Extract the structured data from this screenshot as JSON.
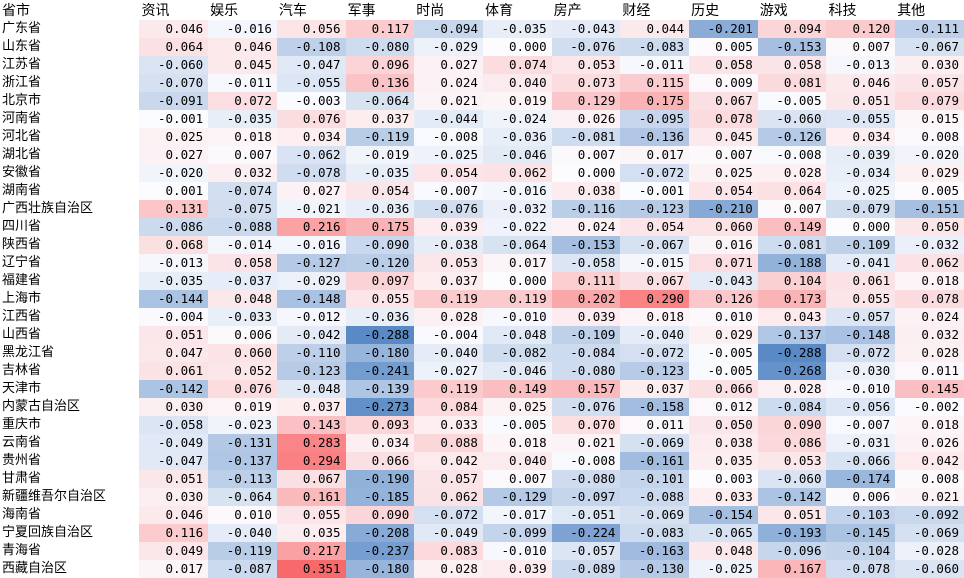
{
  "chart_data": {
    "type": "heatmap",
    "corner_label": "省市",
    "columns": [
      "资讯",
      "娱乐",
      "汽车",
      "军事",
      "时尚",
      "体育",
      "房产",
      "财经",
      "历史",
      "游戏",
      "科技",
      "其他"
    ],
    "rows": [
      {
        "name": "广东省",
        "values": [
          0.046,
          -0.016,
          0.056,
          0.117,
          -0.094,
          -0.035,
          -0.043,
          0.044,
          -0.201,
          0.094,
          0.12,
          -0.111
        ]
      },
      {
        "name": "山东省",
        "values": [
          0.064,
          0.046,
          -0.108,
          -0.08,
          -0.029,
          0.0,
          -0.076,
          -0.083,
          0.005,
          -0.153,
          0.007,
          -0.067
        ]
      },
      {
        "name": "江苏省",
        "values": [
          -0.06,
          0.045,
          -0.047,
          0.096,
          0.027,
          0.074,
          0.053,
          -0.011,
          0.058,
          0.058,
          -0.013,
          0.03
        ]
      },
      {
        "name": "浙江省",
        "values": [
          -0.07,
          -0.011,
          -0.055,
          0.136,
          0.024,
          0.04,
          0.073,
          0.115,
          0.009,
          0.081,
          0.046,
          0.057
        ]
      },
      {
        "name": "北京市",
        "values": [
          -0.091,
          0.072,
          -0.003,
          -0.064,
          0.021,
          0.019,
          0.129,
          0.175,
          0.067,
          -0.005,
          0.051,
          0.079
        ]
      },
      {
        "name": "河南省",
        "values": [
          -0.001,
          -0.035,
          0.076,
          0.037,
          -0.044,
          -0.024,
          0.026,
          -0.095,
          0.078,
          -0.06,
          -0.055,
          0.015
        ]
      },
      {
        "name": "河北省",
        "values": [
          0.025,
          0.018,
          0.034,
          -0.119,
          -0.008,
          -0.036,
          -0.081,
          -0.136,
          0.045,
          -0.126,
          0.034,
          0.008
        ]
      },
      {
        "name": "湖北省",
        "values": [
          0.027,
          0.007,
          -0.062,
          -0.019,
          -0.025,
          -0.046,
          0.007,
          0.017,
          0.007,
          -0.008,
          -0.039,
          -0.02
        ]
      },
      {
        "name": "安徽省",
        "values": [
          -0.02,
          0.032,
          -0.078,
          -0.035,
          0.054,
          0.062,
          0.0,
          -0.072,
          0.025,
          0.028,
          -0.034,
          0.029
        ]
      },
      {
        "name": "湖南省",
        "values": [
          0.001,
          -0.074,
          0.027,
          0.054,
          -0.007,
          -0.016,
          0.038,
          -0.001,
          0.054,
          0.064,
          -0.025,
          0.005
        ]
      },
      {
        "name": "广西壮族自治区",
        "values": [
          0.131,
          -0.075,
          -0.021,
          -0.036,
          -0.076,
          -0.032,
          -0.116,
          -0.123,
          -0.21,
          0.007,
          -0.079,
          -0.151
        ]
      },
      {
        "name": "四川省",
        "values": [
          -0.086,
          -0.088,
          0.216,
          0.175,
          0.039,
          -0.022,
          0.024,
          0.054,
          0.06,
          0.149,
          0.0,
          0.05
        ]
      },
      {
        "name": "陕西省",
        "values": [
          0.068,
          -0.014,
          -0.016,
          -0.09,
          -0.038,
          -0.064,
          -0.153,
          -0.067,
          0.016,
          -0.081,
          -0.109,
          -0.032
        ]
      },
      {
        "name": "辽宁省",
        "values": [
          -0.013,
          0.058,
          -0.127,
          -0.12,
          0.053,
          0.017,
          -0.058,
          -0.015,
          0.071,
          -0.188,
          -0.041,
          0.062
        ]
      },
      {
        "name": "福建省",
        "values": [
          -0.035,
          -0.037,
          -0.029,
          0.097,
          0.037,
          0.0,
          0.111,
          0.067,
          -0.043,
          0.104,
          0.061,
          0.018
        ]
      },
      {
        "name": "上海市",
        "values": [
          -0.144,
          0.048,
          -0.148,
          0.055,
          0.119,
          0.119,
          0.202,
          0.29,
          0.126,
          0.173,
          0.055,
          0.078
        ]
      },
      {
        "name": "江西省",
        "values": [
          -0.004,
          -0.033,
          -0.012,
          -0.036,
          0.028,
          -0.01,
          0.039,
          0.018,
          0.01,
          0.043,
          -0.057,
          0.024
        ]
      },
      {
        "name": "山西省",
        "values": [
          0.051,
          0.006,
          -0.042,
          -0.288,
          -0.004,
          -0.048,
          -0.109,
          -0.04,
          0.029,
          -0.137,
          -0.148,
          0.032
        ]
      },
      {
        "name": "黑龙江省",
        "values": [
          0.047,
          0.06,
          -0.11,
          -0.18,
          -0.04,
          -0.082,
          -0.084,
          -0.072,
          -0.005,
          -0.288,
          -0.072,
          0.028
        ]
      },
      {
        "name": "吉林省",
        "values": [
          0.061,
          0.052,
          -0.123,
          -0.241,
          -0.027,
          -0.046,
          -0.08,
          -0.123,
          -0.005,
          -0.268,
          -0.03,
          0.011
        ]
      },
      {
        "name": "天津市",
        "values": [
          -0.142,
          0.076,
          -0.048,
          -0.139,
          0.119,
          0.149,
          0.157,
          0.037,
          0.066,
          0.028,
          -0.01,
          0.145
        ]
      },
      {
        "name": "内蒙古自治区",
        "values": [
          0.03,
          0.019,
          0.037,
          -0.273,
          0.084,
          0.025,
          -0.076,
          -0.158,
          0.012,
          -0.084,
          -0.056,
          -0.002
        ]
      },
      {
        "name": "重庆市",
        "values": [
          -0.058,
          -0.023,
          0.143,
          0.093,
          0.033,
          -0.005,
          0.07,
          0.011,
          0.05,
          0.09,
          -0.007,
          0.018
        ]
      },
      {
        "name": "云南省",
        "values": [
          -0.049,
          -0.131,
          0.283,
          0.034,
          0.088,
          0.018,
          0.021,
          -0.069,
          0.038,
          0.086,
          -0.031,
          0.026
        ]
      },
      {
        "name": "贵州省",
        "values": [
          -0.047,
          -0.137,
          0.294,
          0.066,
          0.042,
          0.04,
          -0.008,
          -0.161,
          0.035,
          0.053,
          -0.066,
          0.042
        ]
      },
      {
        "name": "甘肃省",
        "values": [
          0.051,
          -0.113,
          0.067,
          -0.19,
          0.057,
          0.007,
          -0.08,
          -0.101,
          0.003,
          -0.06,
          -0.174,
          0.008
        ]
      },
      {
        "name": "新疆维吾尔自治区",
        "values": [
          0.03,
          -0.064,
          0.161,
          -0.185,
          0.062,
          -0.129,
          -0.097,
          -0.088,
          0.033,
          -0.142,
          0.006,
          0.021
        ]
      },
      {
        "name": "海南省",
        "values": [
          0.046,
          0.01,
          0.055,
          0.09,
          -0.072,
          -0.017,
          -0.051,
          -0.069,
          -0.154,
          0.051,
          -0.103,
          -0.092
        ]
      },
      {
        "name": "宁夏回族自治区",
        "values": [
          0.116,
          -0.04,
          0.035,
          -0.208,
          -0.049,
          -0.099,
          -0.224,
          -0.083,
          -0.065,
          -0.193,
          -0.145,
          -0.069
        ]
      },
      {
        "name": "青海省",
        "values": [
          0.049,
          -0.119,
          0.217,
          -0.237,
          0.083,
          -0.01,
          -0.057,
          -0.163,
          0.048,
          -0.096,
          -0.104,
          -0.028
        ]
      },
      {
        "name": "西藏自治区",
        "values": [
          0.017,
          -0.087,
          0.351,
          -0.18,
          0.028,
          0.039,
          -0.089,
          -0.13,
          -0.025,
          0.167,
          -0.078,
          -0.06
        ]
      }
    ],
    "colors": {
      "negative": "#5a8ac6",
      "neutral": "#fcfcff",
      "positive": "#f8696b"
    }
  }
}
